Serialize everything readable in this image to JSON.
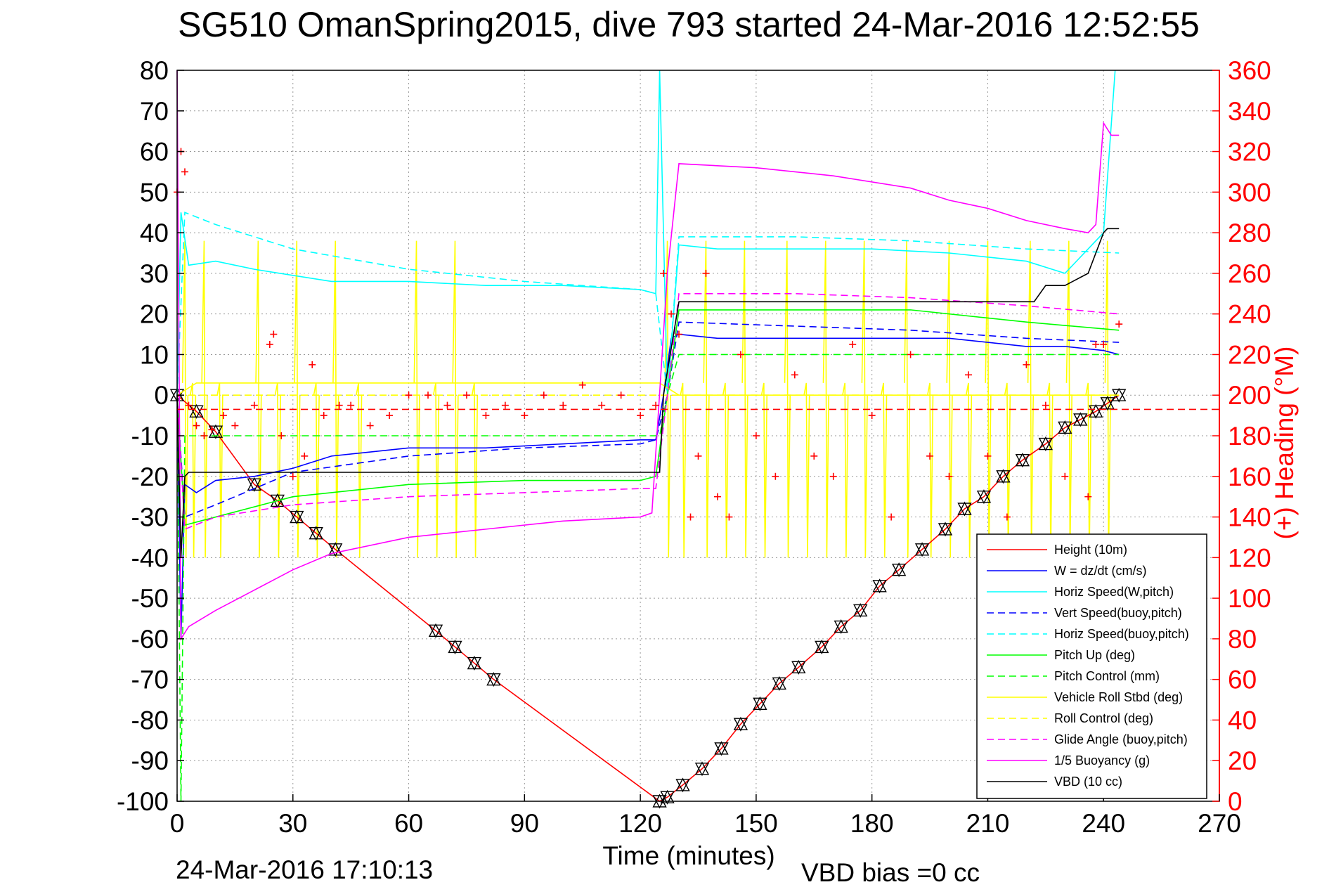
{
  "title": "SG510 OmanSpring2015, dive 793 started 24-Mar-2016 12:52:55",
  "footer_timestamp": "24-Mar-2016 17:10:13",
  "footer_vbd_bias": "VBD bias =0 cc",
  "colors": {
    "height": "#ff0000",
    "w": "#0000ff",
    "horiz_speed": "#00ffff",
    "vert_speed_buoy": "#0000ff",
    "horiz_speed_buoy": "#00ffff",
    "pitch_up": "#00ff00",
    "pitch_control": "#00ff00",
    "roll": "#ffff00",
    "roll_control": "#ffff00",
    "glide_angle": "#ff00ff",
    "buoyancy": "#ff00ff",
    "vbd": "#000000",
    "heading": "#ff0000",
    "right_axis": "#ff0000"
  },
  "chart_data": {
    "type": "line",
    "title": "SG510 OmanSpring2015, dive 793 started 24-Mar-2016 12:52:55",
    "xlabel": "Time (minutes)",
    "ylabel": "",
    "y2label": "(+) Heading (°M)",
    "xlim": [
      0,
      270
    ],
    "ylim": [
      -100,
      80
    ],
    "y2lim": [
      0,
      360
    ],
    "x_ticks": [
      0,
      30,
      60,
      90,
      120,
      150,
      180,
      210,
      240,
      270
    ],
    "y_ticks": [
      80,
      70,
      60,
      50,
      40,
      30,
      20,
      10,
      0,
      -10,
      -20,
      -30,
      -40,
      -50,
      -60,
      -70,
      -80,
      -90,
      -100
    ],
    "y2_ticks": [
      360,
      340,
      320,
      300,
      280,
      260,
      240,
      220,
      200,
      180,
      160,
      140,
      120,
      100,
      80,
      60,
      40,
      20,
      0
    ],
    "grid": true,
    "legend_position": "bottom-right",
    "legend": [
      {
        "label": "Height (10m)",
        "color": "#ff0000",
        "style": "solid"
      },
      {
        "label": "W = dz/dt (cm/s)",
        "color": "#0000ff",
        "style": "solid"
      },
      {
        "label": "Horiz Speed(W,pitch)",
        "color": "#00ffff",
        "style": "solid"
      },
      {
        "label": "Vert Speed(buoy,pitch)",
        "color": "#0000ff",
        "style": "dashed"
      },
      {
        "label": "Horiz Speed(buoy,pitch)",
        "color": "#00ffff",
        "style": "dashed"
      },
      {
        "label": "Pitch Up (deg)",
        "color": "#00ff00",
        "style": "solid"
      },
      {
        "label": "Pitch Control (mm)",
        "color": "#00ff00",
        "style": "dashed"
      },
      {
        "label": "Vehicle Roll Stbd (deg)",
        "color": "#ffff00",
        "style": "solid"
      },
      {
        "label": "Roll Control (deg)",
        "color": "#ffff00",
        "style": "dashed"
      },
      {
        "label": "Glide Angle (buoy,pitch)",
        "color": "#ff00ff",
        "style": "dashed"
      },
      {
        "label": "1/5 Buoyancy (g)",
        "color": "#ff00ff",
        "style": "solid"
      },
      {
        "label": "VBD (10 cc)",
        "color": "#000000",
        "style": "solid"
      }
    ],
    "series": [
      {
        "name": "Height (10m)",
        "axis": "left",
        "style": "solid",
        "color": "#ff0000",
        "markers": "triangle",
        "x": [
          0,
          5,
          10,
          20,
          26,
          31,
          36,
          41,
          67,
          72,
          77,
          82,
          125,
          127,
          131,
          136,
          141,
          146,
          151,
          156,
          161,
          167,
          172,
          177,
          182,
          187,
          193,
          199,
          204,
          209,
          214,
          219,
          225,
          230,
          234,
          238,
          241,
          244
        ],
        "y": [
          0,
          -4,
          -9,
          -22,
          -26,
          -30,
          -34,
          -38,
          -58,
          -62,
          -66,
          -70,
          -100,
          -99,
          -96,
          -92,
          -87,
          -81,
          -76,
          -71,
          -67,
          -62,
          -57,
          -53,
          -47,
          -43,
          -38,
          -33,
          -28,
          -25,
          -20,
          -16,
          -12,
          -8,
          -6,
          -4,
          -2,
          0
        ]
      },
      {
        "name": "W = dz/dt (cm/s)",
        "axis": "left",
        "style": "solid",
        "color": "#0000ff",
        "x": [
          0,
          1,
          2,
          5,
          10,
          20,
          30,
          40,
          60,
          80,
          100,
          120,
          124,
          126,
          128,
          130,
          140,
          160,
          180,
          200,
          220,
          230,
          240,
          244
        ],
        "y": [
          0,
          -60,
          -22,
          -24,
          -21,
          -20,
          -18,
          -15,
          -13,
          -13,
          -12,
          -11,
          -11,
          0,
          14,
          15,
          14,
          14,
          14,
          14,
          12,
          12,
          11,
          10
        ]
      },
      {
        "name": "Horiz Speed(W,pitch)",
        "axis": "left",
        "style": "solid",
        "color": "#00ffff",
        "x": [
          0,
          1,
          3,
          10,
          20,
          40,
          60,
          80,
          100,
          120,
          124,
          125,
          127,
          130,
          140,
          160,
          180,
          200,
          220,
          230,
          240,
          243
        ],
        "y": [
          0,
          45,
          32,
          33,
          31,
          28,
          28,
          27,
          27,
          26,
          25,
          80,
          0,
          37,
          36,
          36,
          36,
          35,
          33,
          30,
          40,
          80
        ]
      },
      {
        "name": "Vert Speed(buoy,pitch)",
        "axis": "left",
        "style": "dashed",
        "color": "#0000ff",
        "x": [
          0,
          2,
          10,
          30,
          60,
          90,
          120,
          124,
          127,
          130,
          160,
          190,
          220,
          244
        ],
        "y": [
          0,
          -30,
          -27,
          -19,
          -15,
          -13,
          -12,
          -11,
          0,
          18,
          17,
          16,
          14,
          13
        ]
      },
      {
        "name": "Horiz Speed(buoy,pitch)",
        "axis": "left",
        "style": "dashed",
        "color": "#00ffff",
        "x": [
          0,
          2,
          10,
          30,
          60,
          90,
          120,
          124,
          127,
          130,
          160,
          190,
          220,
          244
        ],
        "y": [
          0,
          45,
          42,
          36,
          31,
          28,
          26,
          25,
          0,
          39,
          39,
          38,
          36,
          35
        ]
      },
      {
        "name": "Pitch Up (deg)",
        "axis": "left",
        "style": "solid",
        "color": "#00ff00",
        "x": [
          0,
          2,
          10,
          30,
          60,
          90,
          120,
          124,
          127,
          130,
          160,
          190,
          220,
          244
        ],
        "y": [
          0,
          -32,
          -30,
          -25,
          -22,
          -21,
          -21,
          -20,
          0,
          21,
          21,
          21,
          18,
          16
        ]
      },
      {
        "name": "Pitch Control (mm)",
        "axis": "left",
        "style": "dashed",
        "color": "#00ff00",
        "x": [
          0,
          1,
          2,
          10,
          120,
          125,
          127,
          130,
          244
        ],
        "y": [
          0,
          -100,
          -10,
          -10,
          -10,
          -10,
          0,
          10,
          10
        ]
      },
      {
        "name": "Vehicle Roll Stbd (deg)",
        "axis": "left",
        "style": "solid",
        "color": "#ffff00",
        "x": [
          0,
          5,
          20,
          40,
          60,
          80,
          100,
          120,
          125,
          130,
          150,
          170,
          190,
          210,
          230,
          244
        ],
        "y": [
          0,
          3,
          3,
          3,
          3,
          3,
          3,
          3,
          3,
          0,
          0,
          0,
          0,
          0,
          0,
          0
        ]
      },
      {
        "name": "Roll Control (deg)",
        "axis": "left",
        "style": "dashed",
        "color": "#ffff00",
        "x": [
          0,
          244
        ],
        "y": [
          0,
          0
        ]
      },
      {
        "name": "Glide Angle (buoy,pitch)",
        "axis": "left",
        "style": "dashed",
        "color": "#ff00ff",
        "x": [
          0,
          2,
          10,
          30,
          60,
          90,
          120,
          124,
          127,
          130,
          160,
          190,
          220,
          244
        ],
        "y": [
          0,
          -33,
          -30,
          -27,
          -25,
          -24,
          -23,
          -23,
          0,
          25,
          25,
          24,
          22,
          20
        ]
      },
      {
        "name": "1/5 Buoyancy (g)",
        "axis": "left",
        "style": "solid",
        "color": "#ff00ff",
        "x": [
          0,
          1,
          3,
          10,
          20,
          30,
          40,
          60,
          80,
          100,
          120,
          123,
          127,
          130,
          150,
          170,
          190,
          200,
          210,
          220,
          230,
          236,
          238,
          240,
          242,
          244
        ],
        "y": [
          80,
          -60,
          -57,
          -53,
          -48,
          -43,
          -39,
          -35,
          -33,
          -31,
          -30,
          -29,
          30,
          57,
          56,
          54,
          51,
          48,
          46,
          43,
          41,
          40,
          42,
          67,
          64,
          64
        ]
      },
      {
        "name": "VBD (10 cc)",
        "axis": "left",
        "style": "solid",
        "color": "#000000",
        "x": [
          0,
          1,
          2,
          3,
          125,
          126,
          130,
          200,
          222,
          225,
          230,
          236,
          238,
          240,
          241,
          244
        ],
        "y": [
          0,
          -40,
          -20,
          -19,
          -19,
          0,
          23,
          23,
          23,
          27,
          27,
          30,
          35,
          40,
          41,
          41
        ]
      },
      {
        "name": "(+) Heading (°M)",
        "axis": "right",
        "style": "markers",
        "marker": "+",
        "color": "#ff0000",
        "x": [
          0,
          1,
          2,
          3,
          5,
          7,
          9,
          12,
          15,
          20,
          24,
          25,
          27,
          30,
          33,
          35,
          38,
          42,
          45,
          50,
          55,
          60,
          65,
          70,
          75,
          80,
          85,
          90,
          95,
          100,
          105,
          110,
          115,
          120,
          124,
          126,
          128,
          130,
          133,
          135,
          137,
          140,
          143,
          146,
          150,
          155,
          160,
          165,
          170,
          175,
          180,
          185,
          190,
          195,
          200,
          205,
          210,
          215,
          220,
          225,
          230,
          233,
          236,
          238,
          240,
          242,
          244
        ],
        "y": [
          300,
          320,
          310,
          195,
          185,
          180,
          183,
          190,
          185,
          195,
          225,
          230,
          180,
          160,
          170,
          215,
          190,
          195,
          195,
          185,
          190,
          200,
          200,
          195,
          200,
          190,
          195,
          190,
          200,
          195,
          205,
          195,
          200,
          190,
          195,
          260,
          240,
          230,
          140,
          170,
          260,
          150,
          140,
          220,
          180,
          160,
          210,
          170,
          160,
          225,
          190,
          140,
          220,
          170,
          160,
          210,
          170,
          140,
          215,
          195,
          160,
          130,
          150,
          225,
          225,
          120,
          235
        ]
      },
      {
        "name": "heading-reference",
        "axis": "right",
        "style": "dashed",
        "color": "#ff0000",
        "x": [
          0,
          270
        ],
        "y": [
          193,
          193
        ]
      }
    ],
    "roll_spikes_x": [
      2,
      4,
      7,
      11,
      21,
      26,
      31,
      36,
      41,
      47,
      62,
      67,
      72,
      77,
      127,
      131,
      137,
      142,
      147,
      152,
      158,
      163,
      168,
      173,
      178,
      183,
      189,
      195,
      200,
      205,
      210,
      215,
      221,
      226,
      231,
      236,
      241
    ]
  }
}
